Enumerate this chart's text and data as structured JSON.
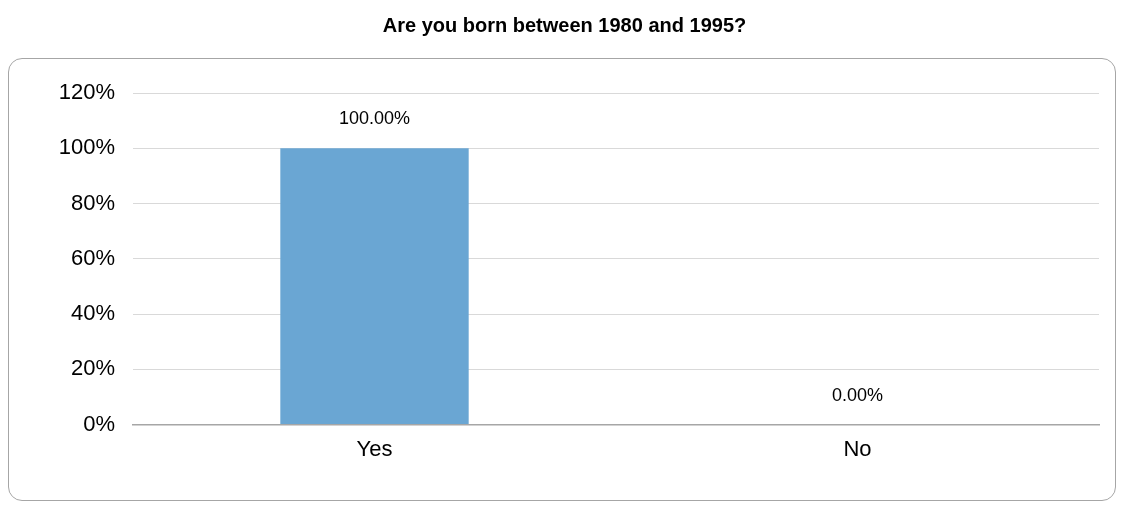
{
  "chart_data": {
    "type": "bar",
    "title": "Are you born between 1980 and 1995?",
    "categories": [
      "Yes",
      "No"
    ],
    "values": [
      100,
      0
    ],
    "color": "#6aa6d3",
    "value_labels": [
      "100.00%",
      "0.00%"
    ],
    "ylim": [
      0,
      120
    ],
    "yticks": [
      {
        "value": 0,
        "label": "0%"
      },
      {
        "value": 20,
        "label": "20%"
      },
      {
        "value": 40,
        "label": "40%"
      },
      {
        "value": 60,
        "label": "60%"
      },
      {
        "value": 80,
        "label": "80%"
      },
      {
        "value": 100,
        "label": "100%"
      },
      {
        "value": 120,
        "label": "120%"
      }
    ],
    "grid": "y",
    "legend": false
  }
}
